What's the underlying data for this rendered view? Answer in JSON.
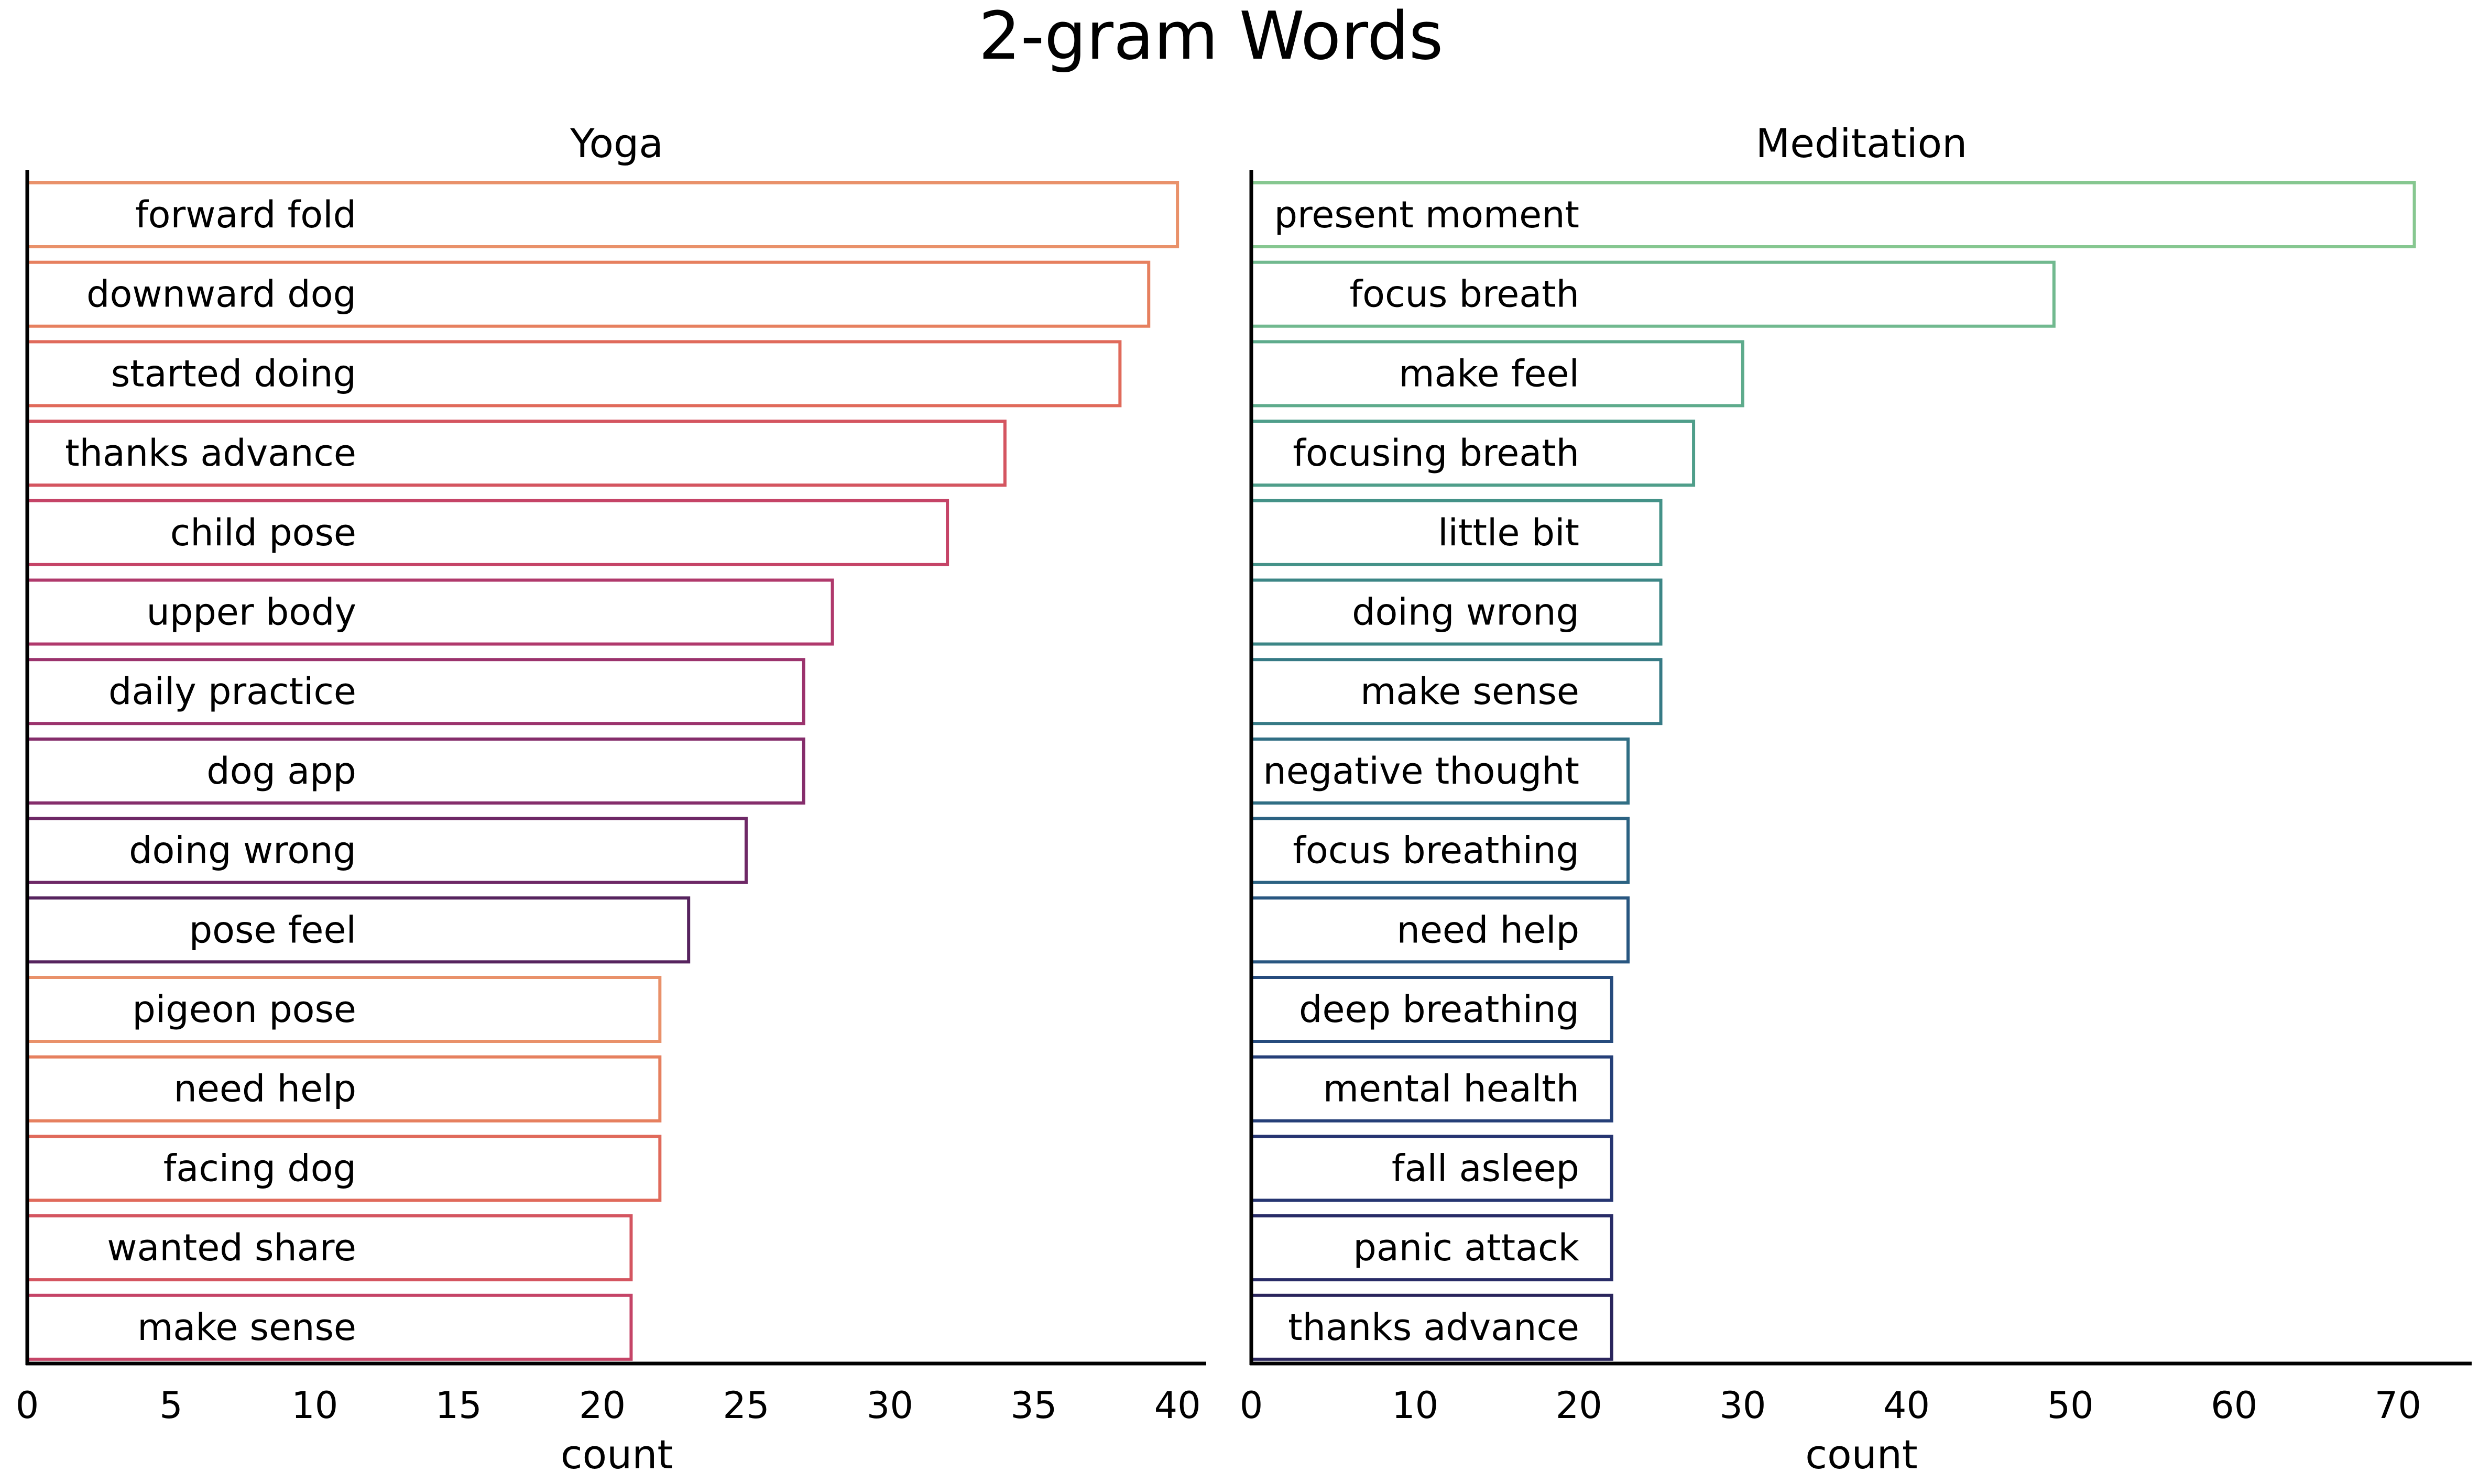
{
  "chart_data": {
    "title": "2-gram Words",
    "type": "bar",
    "panels": [
      {
        "name": "yoga",
        "title": "Yoga",
        "xlabel": "count",
        "xlim": [
          0,
          41
        ],
        "xticks": [
          "0",
          "5",
          "10",
          "15",
          "20",
          "25",
          "30",
          "35",
          "40"
        ],
        "bars": [
          {
            "label": "forward fold",
            "value": 40,
            "color": "#e9916a"
          },
          {
            "label": "downward dog",
            "value": 39,
            "color": "#e6805f"
          },
          {
            "label": "started doing",
            "value": 38,
            "color": "#e06a5b"
          },
          {
            "label": "thanks advance",
            "value": 34,
            "color": "#d45560"
          },
          {
            "label": "child pose",
            "value": 32,
            "color": "#c54467"
          },
          {
            "label": "upper body",
            "value": 28,
            "color": "#b0396c"
          },
          {
            "label": "daily practice",
            "value": 27,
            "color": "#9b336d"
          },
          {
            "label": "dog app",
            "value": 27,
            "color": "#852d6b"
          },
          {
            "label": "doing wrong",
            "value": 25,
            "color": "#6e2866"
          },
          {
            "label": "pose feel",
            "value": 23,
            "color": "#56235e"
          },
          {
            "label": "pigeon pose",
            "value": 22,
            "color": "#e9916a"
          },
          {
            "label": "need help",
            "value": 22,
            "color": "#e6805f"
          },
          {
            "label": "facing dog",
            "value": 22,
            "color": "#e06a5b"
          },
          {
            "label": "wanted share",
            "value": 21,
            "color": "#d45560"
          },
          {
            "label": "make sense",
            "value": 21,
            "color": "#c54467"
          }
        ]
      },
      {
        "name": "meditation",
        "title": "Meditation",
        "xlabel": "count",
        "xlim": [
          0,
          74.5
        ],
        "xticks": [
          "0",
          "10",
          "20",
          "30",
          "40",
          "50",
          "60",
          "70"
        ],
        "bars": [
          {
            "label": "present moment",
            "value": 71,
            "color": "#86c790"
          },
          {
            "label": "focus breath",
            "value": 49,
            "color": "#71b98f"
          },
          {
            "label": "make feel",
            "value": 30,
            "color": "#5eab8c"
          },
          {
            "label": "focusing breath",
            "value": 27,
            "color": "#4f9e8a"
          },
          {
            "label": "little bit",
            "value": 25,
            "color": "#449288"
          },
          {
            "label": "doing wrong",
            "value": 25,
            "color": "#3c8686"
          },
          {
            "label": "make sense",
            "value": 25,
            "color": "#367a85"
          },
          {
            "label": "negative thought",
            "value": 23,
            "color": "#306e84"
          },
          {
            "label": "focus breathing",
            "value": 23,
            "color": "#2b6282"
          },
          {
            "label": "need help",
            "value": 23,
            "color": "#285680"
          },
          {
            "label": "deep breathing",
            "value": 22,
            "color": "#264b7d"
          },
          {
            "label": "mental health",
            "value": 22,
            "color": "#253f78"
          },
          {
            "label": "fall asleep",
            "value": 22,
            "color": "#263571"
          },
          {
            "label": "panic attack",
            "value": 22,
            "color": "#282c67"
          },
          {
            "label": "thanks advance",
            "value": 22,
            "color": "#2a255c"
          }
        ]
      }
    ]
  }
}
